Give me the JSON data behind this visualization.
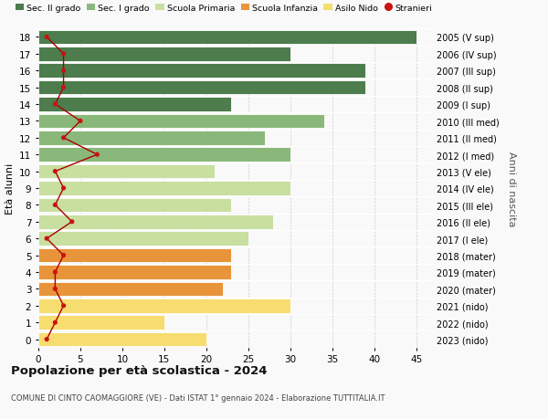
{
  "ages": [
    0,
    1,
    2,
    3,
    4,
    5,
    6,
    7,
    8,
    9,
    10,
    11,
    12,
    13,
    14,
    15,
    16,
    17,
    18
  ],
  "right_labels": [
    "2023 (nido)",
    "2022 (nido)",
    "2021 (nido)",
    "2020 (mater)",
    "2019 (mater)",
    "2018 (mater)",
    "2017 (I ele)",
    "2016 (II ele)",
    "2015 (III ele)",
    "2014 (IV ele)",
    "2013 (V ele)",
    "2012 (I med)",
    "2011 (II med)",
    "2010 (III med)",
    "2009 (I sup)",
    "2008 (II sup)",
    "2007 (III sup)",
    "2006 (IV sup)",
    "2005 (V sup)"
  ],
  "bar_values": [
    20,
    15,
    30,
    22,
    23,
    23,
    25,
    28,
    23,
    30,
    21,
    30,
    27,
    34,
    23,
    39,
    39,
    30,
    45
  ],
  "bar_colors": [
    "#f7dc6f",
    "#f7dc6f",
    "#f7dc6f",
    "#e8943a",
    "#e8943a",
    "#e8943a",
    "#c8dfa0",
    "#c8dfa0",
    "#c8dfa0",
    "#c8dfa0",
    "#c8dfa0",
    "#8ab87a",
    "#8ab87a",
    "#8ab87a",
    "#4d7c4d",
    "#4d7c4d",
    "#4d7c4d",
    "#4d7c4d",
    "#4d7c4d"
  ],
  "stranieri_values": [
    1,
    2,
    3,
    2,
    2,
    3,
    1,
    4,
    2,
    3,
    2,
    7,
    3,
    5,
    2,
    3,
    3,
    3,
    1
  ],
  "legend_labels": [
    "Sec. II grado",
    "Sec. I grado",
    "Scuola Primaria",
    "Scuola Infanzia",
    "Asilo Nido",
    "Stranieri"
  ],
  "legend_colors": [
    "#4d7c4d",
    "#8ab87a",
    "#c8dfa0",
    "#e8943a",
    "#f7dc6f",
    "#cc1111"
  ],
  "title": "Popolazione per età scolastica - 2024",
  "subtitle": "COMUNE DI CINTO CAOMAGGIORE (VE) - Dati ISTAT 1° gennaio 2024 - Elaborazione TUTTITALIA.IT",
  "ylabel_left": "Età alunni",
  "ylabel_right": "Anni di nascita",
  "xlim": [
    0,
    47
  ],
  "background_color": "#f9f9f9"
}
